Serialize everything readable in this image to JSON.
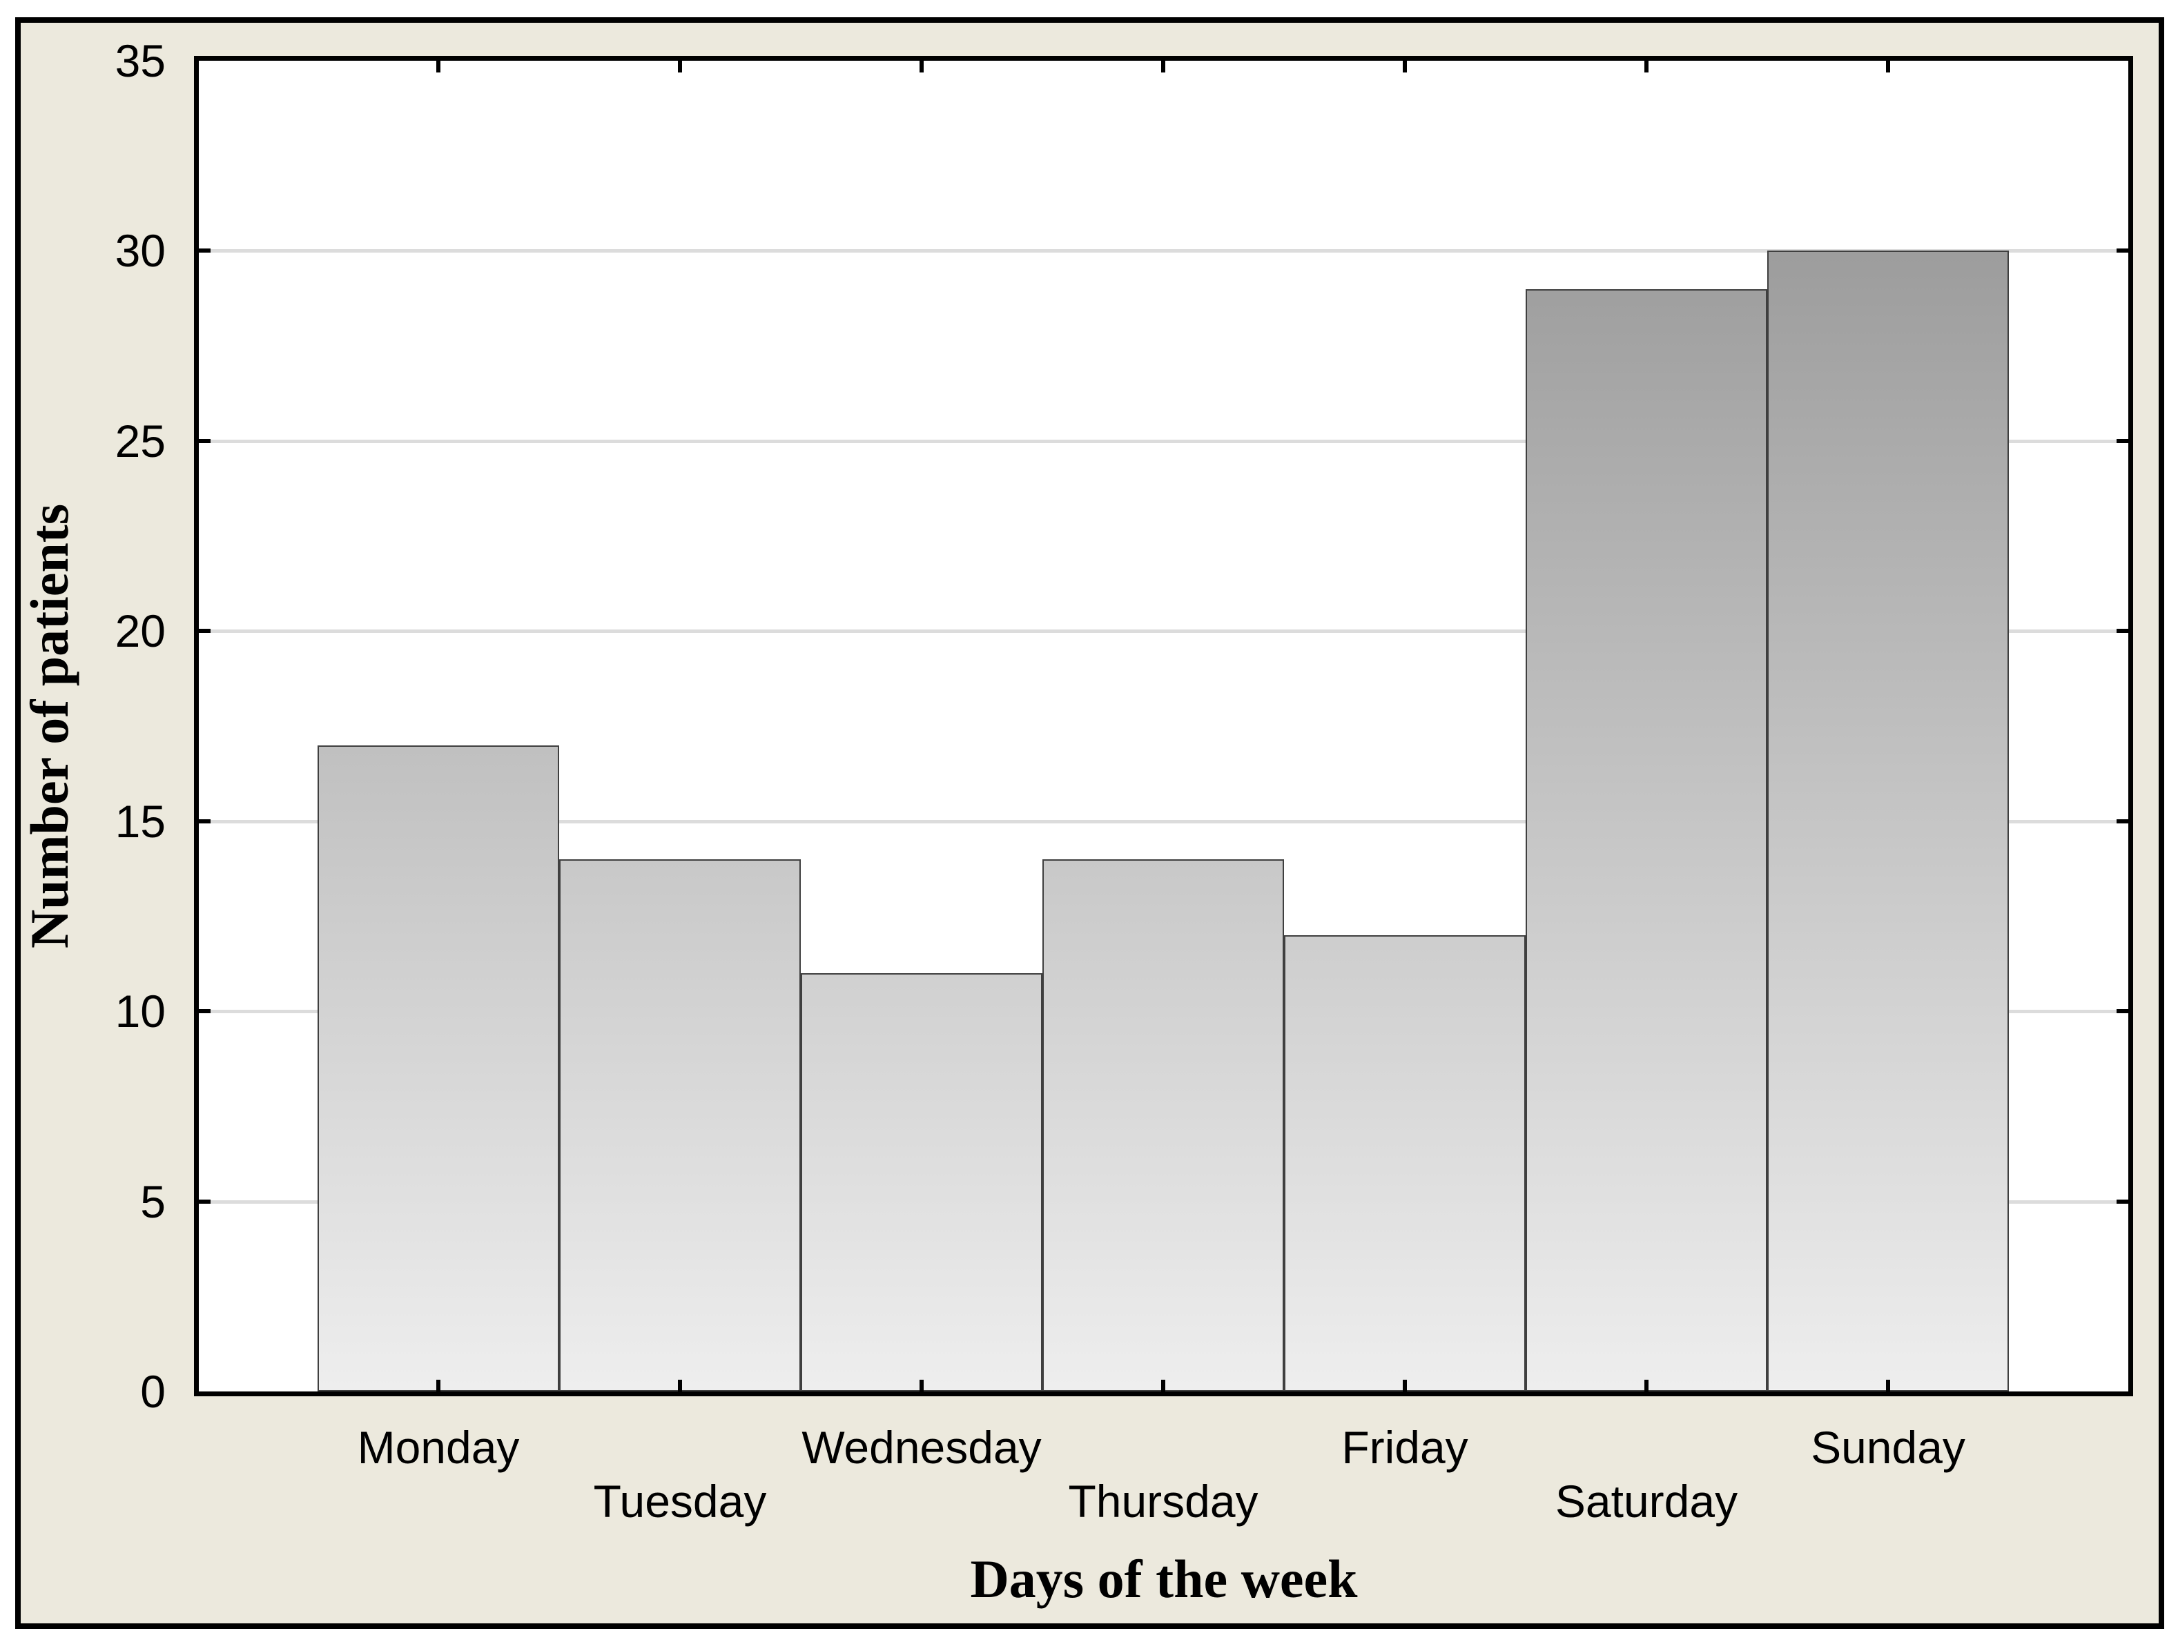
{
  "chart_data": {
    "type": "bar",
    "title": "",
    "xlabel": "Days of the week",
    "ylabel": "Number of patients",
    "categories": [
      "Monday",
      "Tuesday",
      "Wednesday",
      "Thursday",
      "Friday",
      "Saturday",
      "Sunday"
    ],
    "values": [
      17,
      14,
      11,
      14,
      12,
      29,
      30
    ],
    "ylim": [
      0,
      35
    ],
    "yticks": [
      0,
      5,
      10,
      15,
      20,
      25,
      30,
      35
    ],
    "ytick_labels": [
      "0",
      "5",
      "10",
      "15",
      "20",
      "25",
      "30",
      "35"
    ],
    "grid_values": [
      5,
      10,
      15,
      20,
      25,
      30
    ],
    "grid": "horizontal",
    "legend_position": "none",
    "x_label_rows": [
      1,
      2,
      1,
      2,
      1,
      2,
      1
    ],
    "colors": {
      "figure_background": "#ece9dd",
      "plot_background": "#ffffff",
      "frame": "#000000",
      "gridline": "#dcdcdc",
      "bar_gradient_top": "#8f8f8f",
      "bar_gradient_bottom": "#eeeeee",
      "bar_border": "#3f3f3f",
      "text": "#000000"
    }
  }
}
